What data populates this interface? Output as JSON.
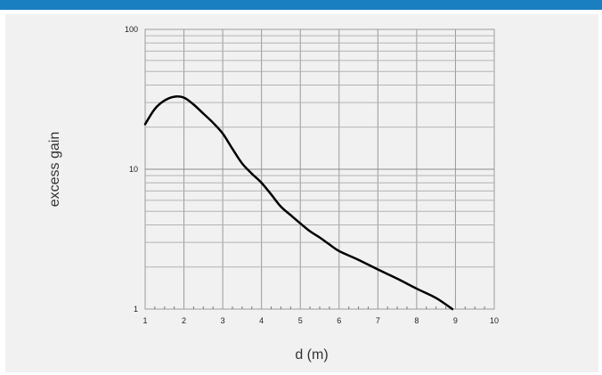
{
  "chart_data": {
    "type": "line",
    "title": "",
    "xlabel": "d (m)",
    "ylabel": "excess gain",
    "x_scale": "linear",
    "y_scale": "log",
    "xlim": [
      1,
      10
    ],
    "ylim": [
      1,
      100
    ],
    "x_ticks": [
      "1",
      "2",
      "3",
      "4",
      "5",
      "6",
      "7",
      "8",
      "9",
      "10"
    ],
    "y_ticks": [
      "1",
      "10",
      "100"
    ],
    "grid": true,
    "legend": "none",
    "line_color": "#000000",
    "series": [
      {
        "x": [
          1.0,
          1.25,
          1.5,
          1.75,
          2.0,
          2.25,
          2.5,
          2.75,
          3.0,
          3.25,
          3.5,
          3.75,
          4.0,
          4.25,
          4.5,
          4.75,
          5.0,
          5.25,
          5.5,
          5.75,
          6.0,
          6.5,
          7.0,
          7.5,
          8.0,
          8.5,
          8.92
        ],
        "y": [
          21,
          27,
          31,
          33,
          32.5,
          29,
          25,
          21.5,
          18,
          14,
          11,
          9.3,
          8.0,
          6.6,
          5.4,
          4.7,
          4.1,
          3.6,
          3.25,
          2.9,
          2.6,
          2.25,
          1.92,
          1.65,
          1.4,
          1.2,
          1.0
        ]
      }
    ]
  }
}
